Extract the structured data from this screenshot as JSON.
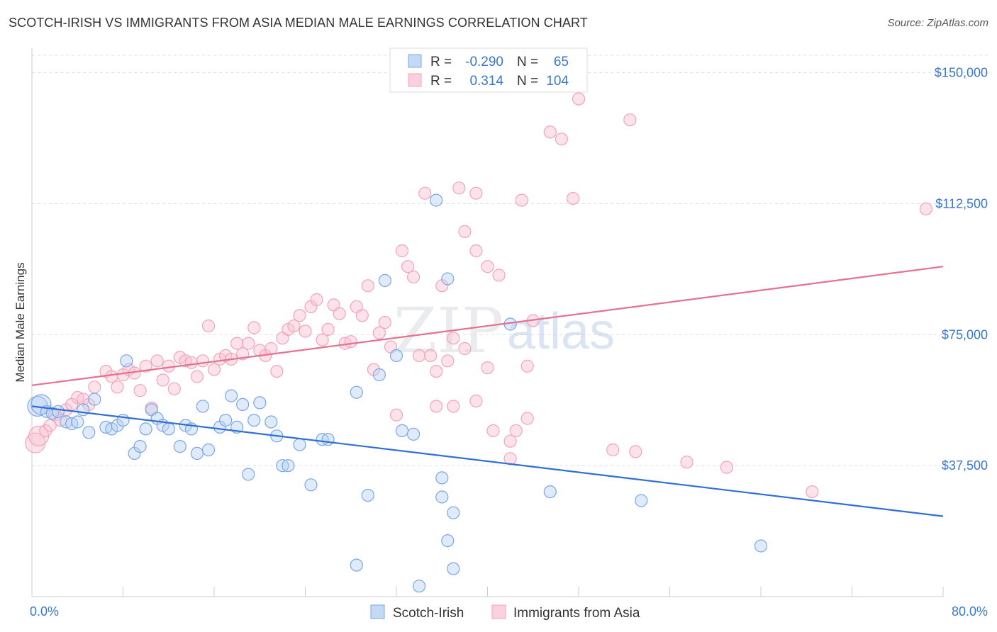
{
  "title": "SCOTCH-IRISH VS IMMIGRANTS FROM ASIA MEDIAN MALE EARNINGS CORRELATION CHART",
  "source": "Source: ZipAtlas.com",
  "watermark": {
    "zip": "ZIP",
    "atlas": "atlas"
  },
  "legend": {
    "r_label": "R =",
    "n_label": "N =",
    "rows": [
      {
        "r": "-0.290",
        "n": "65"
      },
      {
        "r": "0.314",
        "n": "104"
      }
    ]
  },
  "chart_data": {
    "type": "scatter",
    "title": "SCOTCH-IRISH VS IMMIGRANTS FROM ASIA MEDIAN MALE EARNINGS CORRELATION CHART",
    "xlabel": "",
    "ylabel": "Median Male Earnings",
    "xlim": [
      0,
      80
    ],
    "ylim": [
      0,
      155000
    ],
    "x_tick_labels": [
      "0.0%",
      "80.0%"
    ],
    "y_ticks": [
      37500,
      75000,
      112500,
      150000
    ],
    "y_tick_labels": [
      "$37,500",
      "$75,000",
      "$112,500",
      "$150,000"
    ],
    "grid": "horizontal dashed",
    "legend_position": "top-center",
    "colors": {
      "Scotch-Irish": "#7aa7e6",
      "Immigrants from Asia": "#f3a3bb",
      "blue_line": "#2f6fd6",
      "pink_line": "#e5718f"
    },
    "series": [
      {
        "name": "Scotch-Irish",
        "r": -0.29,
        "n": 65,
        "trend": [
          [
            0,
            54500
          ],
          [
            80,
            23000
          ]
        ],
        "points": [
          [
            0.5,
            54500
          ],
          [
            0.8,
            55000
          ],
          [
            1.3,
            53000
          ],
          [
            1.8,
            52500
          ],
          [
            2.3,
            53000
          ],
          [
            3.0,
            50000
          ],
          [
            3.5,
            49500
          ],
          [
            4.0,
            50000
          ],
          [
            4.5,
            53500
          ],
          [
            5.0,
            47000
          ],
          [
            5.5,
            56500
          ],
          [
            6.5,
            48500
          ],
          [
            7.0,
            48000
          ],
          [
            7.5,
            49000
          ],
          [
            8.0,
            50500
          ],
          [
            9.0,
            41000
          ],
          [
            9.5,
            43000
          ],
          [
            10.0,
            48000
          ],
          [
            10.5,
            53500
          ],
          [
            11.0,
            51000
          ],
          [
            11.5,
            49000
          ],
          [
            12.0,
            48000
          ],
          [
            13.0,
            43000
          ],
          [
            13.5,
            49000
          ],
          [
            14.0,
            48000
          ],
          [
            14.5,
            41000
          ],
          [
            15.0,
            54500
          ],
          [
            15.5,
            42000
          ],
          [
            16.5,
            48500
          ],
          [
            17.0,
            50500
          ],
          [
            17.5,
            57500
          ],
          [
            18.0,
            48500
          ],
          [
            18.5,
            55000
          ],
          [
            19.0,
            35000
          ],
          [
            19.5,
            50500
          ],
          [
            20.0,
            55500
          ],
          [
            21.0,
            50000
          ],
          [
            21.5,
            46000
          ],
          [
            22.0,
            37500
          ],
          [
            22.5,
            37500
          ],
          [
            23.5,
            43500
          ],
          [
            24.5,
            32000
          ],
          [
            25.5,
            45000
          ],
          [
            26.0,
            45000
          ],
          [
            28.5,
            58500
          ],
          [
            28.5,
            9000
          ],
          [
            29.5,
            29000
          ],
          [
            30.5,
            63500
          ],
          [
            31.0,
            90500
          ],
          [
            32.0,
            69000
          ],
          [
            32.5,
            47500
          ],
          [
            33.5,
            46500
          ],
          [
            34.0,
            3000
          ],
          [
            36.0,
            34000
          ],
          [
            36.0,
            28500
          ],
          [
            35.5,
            113500
          ],
          [
            36.5,
            91000
          ],
          [
            36.5,
            16000
          ],
          [
            37.0,
            24000
          ],
          [
            37.0,
            8000
          ],
          [
            42.0,
            78000
          ],
          [
            45.5,
            30000
          ],
          [
            8.3,
            67500
          ],
          [
            53.5,
            27500
          ],
          [
            64.0,
            14500
          ]
        ]
      },
      {
        "name": "Immigrants from Asia",
        "r": 0.314,
        "n": 104,
        "trend": [
          [
            0,
            60500
          ],
          [
            80,
            94500
          ]
        ],
        "points": [
          [
            0.3,
            44000
          ],
          [
            0.6,
            46000
          ],
          [
            1.2,
            47500
          ],
          [
            1.6,
            49000
          ],
          [
            2.0,
            52000
          ],
          [
            2.5,
            50500
          ],
          [
            3.0,
            53500
          ],
          [
            3.5,
            55000
          ],
          [
            4.0,
            57000
          ],
          [
            4.5,
            56500
          ],
          [
            5.0,
            55000
          ],
          [
            5.5,
            60000
          ],
          [
            6.5,
            64500
          ],
          [
            7.0,
            63000
          ],
          [
            7.5,
            60000
          ],
          [
            8.0,
            63500
          ],
          [
            8.5,
            65000
          ],
          [
            9.0,
            64000
          ],
          [
            9.5,
            59000
          ],
          [
            10.0,
            66000
          ],
          [
            10.5,
            54000
          ],
          [
            11.0,
            67500
          ],
          [
            11.5,
            62000
          ],
          [
            12.0,
            66000
          ],
          [
            12.5,
            59500
          ],
          [
            13.0,
            68500
          ],
          [
            13.5,
            67500
          ],
          [
            14.0,
            67000
          ],
          [
            14.5,
            63000
          ],
          [
            15.0,
            67500
          ],
          [
            15.5,
            77500
          ],
          [
            16.0,
            65000
          ],
          [
            16.5,
            68000
          ],
          [
            17.0,
            69000
          ],
          [
            17.5,
            68000
          ],
          [
            18.0,
            72500
          ],
          [
            18.5,
            69500
          ],
          [
            19.0,
            72500
          ],
          [
            19.5,
            77000
          ],
          [
            20.0,
            70500
          ],
          [
            20.5,
            69000
          ],
          [
            21.0,
            71000
          ],
          [
            21.5,
            64500
          ],
          [
            22.0,
            74000
          ],
          [
            22.5,
            76500
          ],
          [
            23.0,
            77500
          ],
          [
            23.5,
            80500
          ],
          [
            24.0,
            76000
          ],
          [
            24.5,
            83000
          ],
          [
            25.0,
            85000
          ],
          [
            25.5,
            73500
          ],
          [
            26.0,
            76500
          ],
          [
            26.5,
            83500
          ],
          [
            27.0,
            81000
          ],
          [
            27.5,
            72500
          ],
          [
            28.0,
            73000
          ],
          [
            28.5,
            83000
          ],
          [
            29.0,
            80500
          ],
          [
            29.5,
            89000
          ],
          [
            30.0,
            65000
          ],
          [
            30.5,
            75500
          ],
          [
            31.0,
            78500
          ],
          [
            31.5,
            71500
          ],
          [
            32.0,
            52000
          ],
          [
            32.5,
            99000
          ],
          [
            33.0,
            94500
          ],
          [
            33.5,
            91500
          ],
          [
            34.0,
            69000
          ],
          [
            34.5,
            115500
          ],
          [
            35.0,
            69000
          ],
          [
            35.5,
            64500
          ],
          [
            35.5,
            54500
          ],
          [
            36.0,
            89000
          ],
          [
            36.5,
            67500
          ],
          [
            37.0,
            74000
          ],
          [
            37.0,
            54500
          ],
          [
            37.5,
            117000
          ],
          [
            38.0,
            71000
          ],
          [
            38.0,
            104500
          ],
          [
            39.0,
            115500
          ],
          [
            39.0,
            99000
          ],
          [
            39.0,
            56000
          ],
          [
            40.0,
            65500
          ],
          [
            40.0,
            94500
          ],
          [
            40.5,
            47500
          ],
          [
            41.0,
            92000
          ],
          [
            42.0,
            39500
          ],
          [
            42.0,
            44500
          ],
          [
            42.5,
            47500
          ],
          [
            43.0,
            113500
          ],
          [
            43.5,
            51000
          ],
          [
            43.5,
            66000
          ],
          [
            44.0,
            79000
          ],
          [
            45.5,
            133000
          ],
          [
            46.5,
            131000
          ],
          [
            47.5,
            114000
          ],
          [
            48.0,
            142500
          ],
          [
            51.0,
            42000
          ],
          [
            52.5,
            136500
          ],
          [
            53.0,
            41500
          ],
          [
            57.5,
            38500
          ],
          [
            61.0,
            37000
          ],
          [
            68.5,
            30000
          ],
          [
            78.5,
            111000
          ]
        ]
      }
    ]
  },
  "bottom_legend": [
    "Scotch-Irish",
    "Immigrants from Asia"
  ]
}
